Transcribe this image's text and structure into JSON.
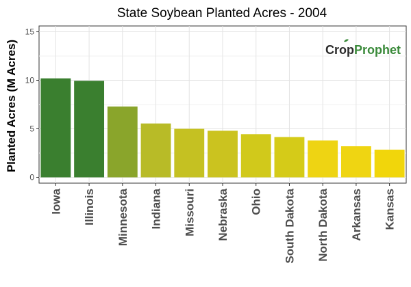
{
  "chart_data": {
    "type": "bar",
    "title": "State Soybean Planted Acres - 2004",
    "xlabel": "",
    "ylabel": "Planted Acres (M Acres)",
    "ylim": [
      -0.6,
      15.6
    ],
    "yticks": [
      0,
      5,
      10,
      15
    ],
    "grid": true,
    "categories": [
      "Iowa",
      "Illinois",
      "Minnesota",
      "Indiana",
      "Missouri",
      "Nebraska",
      "Ohio",
      "South Dakota",
      "North Dakota",
      "Arkansas",
      "Kansas"
    ],
    "values": [
      10.2,
      9.95,
      7.3,
      5.55,
      5.0,
      4.8,
      4.45,
      4.15,
      3.8,
      3.2,
      2.85
    ],
    "colors": [
      "#3a7f2f",
      "#3a7f2f",
      "#8aa52b",
      "#b8bb27",
      "#c5c122",
      "#cbc31f",
      "#d1c91b",
      "#d5cb18",
      "#eed413",
      "#efd512",
      "#f1d60b"
    ]
  },
  "watermark": {
    "part1": "Crop",
    "part2": "Prophet"
  }
}
